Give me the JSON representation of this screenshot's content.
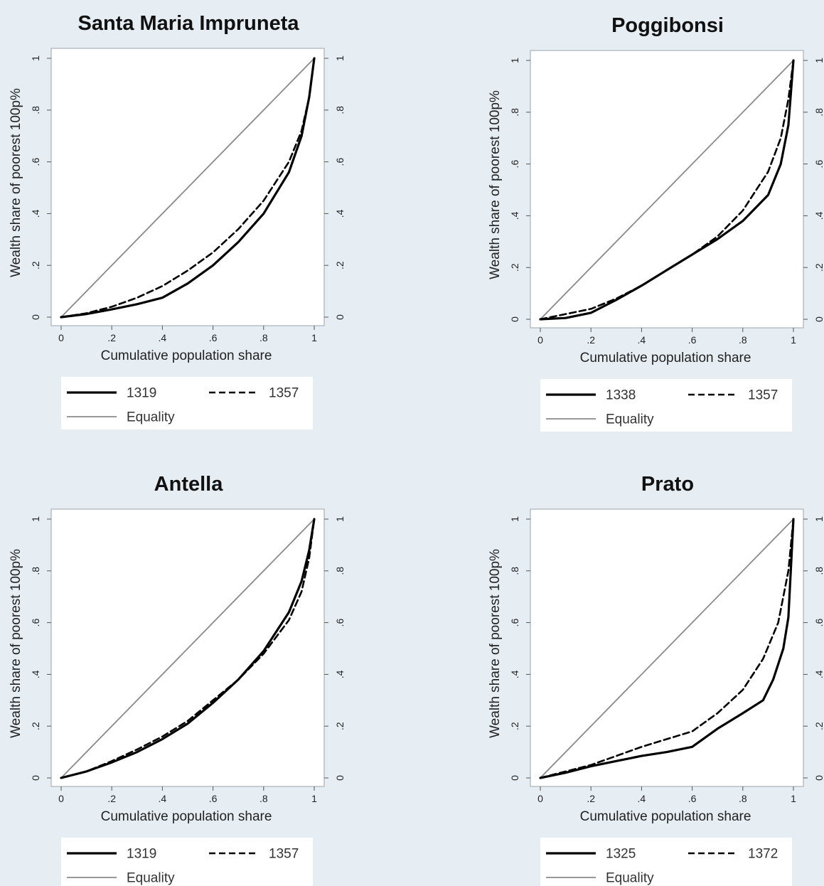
{
  "chart_data": [
    {
      "type": "line",
      "title": "Santa Maria Impruneta",
      "xlabel": "Cumulative population share",
      "ylabel": "Wealth share of poorest 100p%",
      "xlim": [
        0,
        1
      ],
      "ylim": [
        0,
        1
      ],
      "x_ticks": [
        "0",
        ".2",
        ".4",
        ".6",
        ".8",
        "1"
      ],
      "y_ticks": [
        "0",
        ".2",
        ".4",
        ".6",
        ".8",
        "1"
      ],
      "legend_position": "bottom",
      "series": [
        {
          "name": "1319",
          "style": "solid-thick",
          "color": "#000000",
          "points": [
            [
              0,
              0
            ],
            [
              0.1,
              0.012
            ],
            [
              0.2,
              0.03
            ],
            [
              0.3,
              0.05
            ],
            [
              0.4,
              0.075
            ],
            [
              0.5,
              0.13
            ],
            [
              0.6,
              0.2
            ],
            [
              0.7,
              0.29
            ],
            [
              0.8,
              0.4
            ],
            [
              0.9,
              0.56
            ],
            [
              0.95,
              0.7
            ],
            [
              0.98,
              0.85
            ],
            [
              1,
              1
            ]
          ]
        },
        {
          "name": "1357",
          "style": "dashed",
          "color": "#000000",
          "points": [
            [
              0,
              0
            ],
            [
              0.1,
              0.015
            ],
            [
              0.2,
              0.04
            ],
            [
              0.3,
              0.075
            ],
            [
              0.4,
              0.12
            ],
            [
              0.5,
              0.18
            ],
            [
              0.6,
              0.25
            ],
            [
              0.7,
              0.34
            ],
            [
              0.8,
              0.45
            ],
            [
              0.9,
              0.6
            ],
            [
              0.95,
              0.72
            ],
            [
              0.98,
              0.85
            ],
            [
              1,
              1
            ]
          ]
        },
        {
          "name": "Equality",
          "style": "solid-thin",
          "color": "#8a8a8a",
          "points": [
            [
              0,
              0
            ],
            [
              1,
              1
            ]
          ]
        }
      ]
    },
    {
      "type": "line",
      "title": "Poggibonsi",
      "xlabel": "Cumulative population share",
      "ylabel": "Wealth share of poorest 100p%",
      "xlim": [
        0,
        1
      ],
      "ylim": [
        0,
        1
      ],
      "x_ticks": [
        "0",
        ".2",
        ".4",
        ".6",
        ".8",
        "1"
      ],
      "y_ticks": [
        "0",
        ".2",
        ".4",
        ".6",
        ".8",
        "1"
      ],
      "legend_position": "bottom",
      "series": [
        {
          "name": "1338",
          "style": "solid-thick",
          "color": "#000000",
          "points": [
            [
              0,
              0
            ],
            [
              0.1,
              0.005
            ],
            [
              0.2,
              0.025
            ],
            [
              0.3,
              0.075
            ],
            [
              0.4,
              0.13
            ],
            [
              0.5,
              0.19
            ],
            [
              0.6,
              0.25
            ],
            [
              0.7,
              0.31
            ],
            [
              0.8,
              0.38
            ],
            [
              0.9,
              0.48
            ],
            [
              0.95,
              0.6
            ],
            [
              0.98,
              0.75
            ],
            [
              1,
              1
            ]
          ]
        },
        {
          "name": "1357",
          "style": "dashed",
          "color": "#000000",
          "points": [
            [
              0,
              0
            ],
            [
              0.1,
              0.02
            ],
            [
              0.2,
              0.04
            ],
            [
              0.3,
              0.08
            ],
            [
              0.4,
              0.13
            ],
            [
              0.5,
              0.19
            ],
            [
              0.6,
              0.25
            ],
            [
              0.7,
              0.32
            ],
            [
              0.8,
              0.42
            ],
            [
              0.9,
              0.57
            ],
            [
              0.95,
              0.7
            ],
            [
              0.98,
              0.85
            ],
            [
              1,
              1
            ]
          ]
        },
        {
          "name": "Equality",
          "style": "solid-thin",
          "color": "#8a8a8a",
          "points": [
            [
              0,
              0
            ],
            [
              1,
              1
            ]
          ]
        }
      ]
    },
    {
      "type": "line",
      "title": "Antella",
      "xlabel": "Cumulative population share",
      "ylabel": "Wealth share of poorest 100p%",
      "xlim": [
        0,
        1
      ],
      "ylim": [
        0,
        1
      ],
      "x_ticks": [
        "0",
        ".2",
        ".4",
        ".6",
        ".8",
        "1"
      ],
      "y_ticks": [
        "0",
        ".2",
        ".4",
        ".6",
        ".8",
        "1"
      ],
      "legend_position": "bottom",
      "series": [
        {
          "name": "1319",
          "style": "solid-thick",
          "color": "#000000",
          "points": [
            [
              0,
              0
            ],
            [
              0.1,
              0.025
            ],
            [
              0.2,
              0.06
            ],
            [
              0.3,
              0.1
            ],
            [
              0.4,
              0.15
            ],
            [
              0.5,
              0.21
            ],
            [
              0.6,
              0.29
            ],
            [
              0.7,
              0.38
            ],
            [
              0.8,
              0.49
            ],
            [
              0.9,
              0.64
            ],
            [
              0.95,
              0.76
            ],
            [
              0.98,
              0.88
            ],
            [
              1,
              1
            ]
          ]
        },
        {
          "name": "1357",
          "style": "dashed",
          "color": "#000000",
          "points": [
            [
              0,
              0
            ],
            [
              0.1,
              0.025
            ],
            [
              0.2,
              0.065
            ],
            [
              0.3,
              0.11
            ],
            [
              0.4,
              0.16
            ],
            [
              0.5,
              0.22
            ],
            [
              0.6,
              0.3
            ],
            [
              0.7,
              0.38
            ],
            [
              0.8,
              0.48
            ],
            [
              0.9,
              0.61
            ],
            [
              0.95,
              0.72
            ],
            [
              0.98,
              0.85
            ],
            [
              1,
              1
            ]
          ]
        },
        {
          "name": "Equality",
          "style": "solid-thin",
          "color": "#8a8a8a",
          "points": [
            [
              0,
              0
            ],
            [
              1,
              1
            ]
          ]
        }
      ]
    },
    {
      "type": "line",
      "title": "Prato",
      "xlabel": "Cumulative population share",
      "ylabel": "Wealth share of poorest 100p%",
      "xlim": [
        0,
        1
      ],
      "ylim": [
        0,
        1
      ],
      "x_ticks": [
        "0",
        ".2",
        ".4",
        ".6",
        ".8",
        "1"
      ],
      "y_ticks": [
        "0",
        ".2",
        ".4",
        ".6",
        ".8",
        "1"
      ],
      "legend_position": "bottom",
      "series": [
        {
          "name": "1325",
          "style": "solid-thick",
          "color": "#000000",
          "points": [
            [
              0,
              0
            ],
            [
              0.1,
              0.02
            ],
            [
              0.2,
              0.045
            ],
            [
              0.3,
              0.065
            ],
            [
              0.4,
              0.085
            ],
            [
              0.5,
              0.1
            ],
            [
              0.6,
              0.12
            ],
            [
              0.7,
              0.19
            ],
            [
              0.8,
              0.25
            ],
            [
              0.88,
              0.3
            ],
            [
              0.92,
              0.38
            ],
            [
              0.96,
              0.5
            ],
            [
              0.98,
              0.62
            ],
            [
              1,
              1
            ]
          ]
        },
        {
          "name": "1372",
          "style": "dashed",
          "color": "#000000",
          "points": [
            [
              0,
              0
            ],
            [
              0.1,
              0.025
            ],
            [
              0.2,
              0.05
            ],
            [
              0.3,
              0.085
            ],
            [
              0.4,
              0.12
            ],
            [
              0.5,
              0.15
            ],
            [
              0.6,
              0.18
            ],
            [
              0.7,
              0.25
            ],
            [
              0.8,
              0.34
            ],
            [
              0.88,
              0.46
            ],
            [
              0.94,
              0.6
            ],
            [
              0.98,
              0.8
            ],
            [
              1,
              1
            ]
          ]
        },
        {
          "name": "Equality",
          "style": "solid-thin",
          "color": "#8a8a8a",
          "points": [
            [
              0,
              0
            ],
            [
              1,
              1
            ]
          ]
        }
      ]
    }
  ]
}
